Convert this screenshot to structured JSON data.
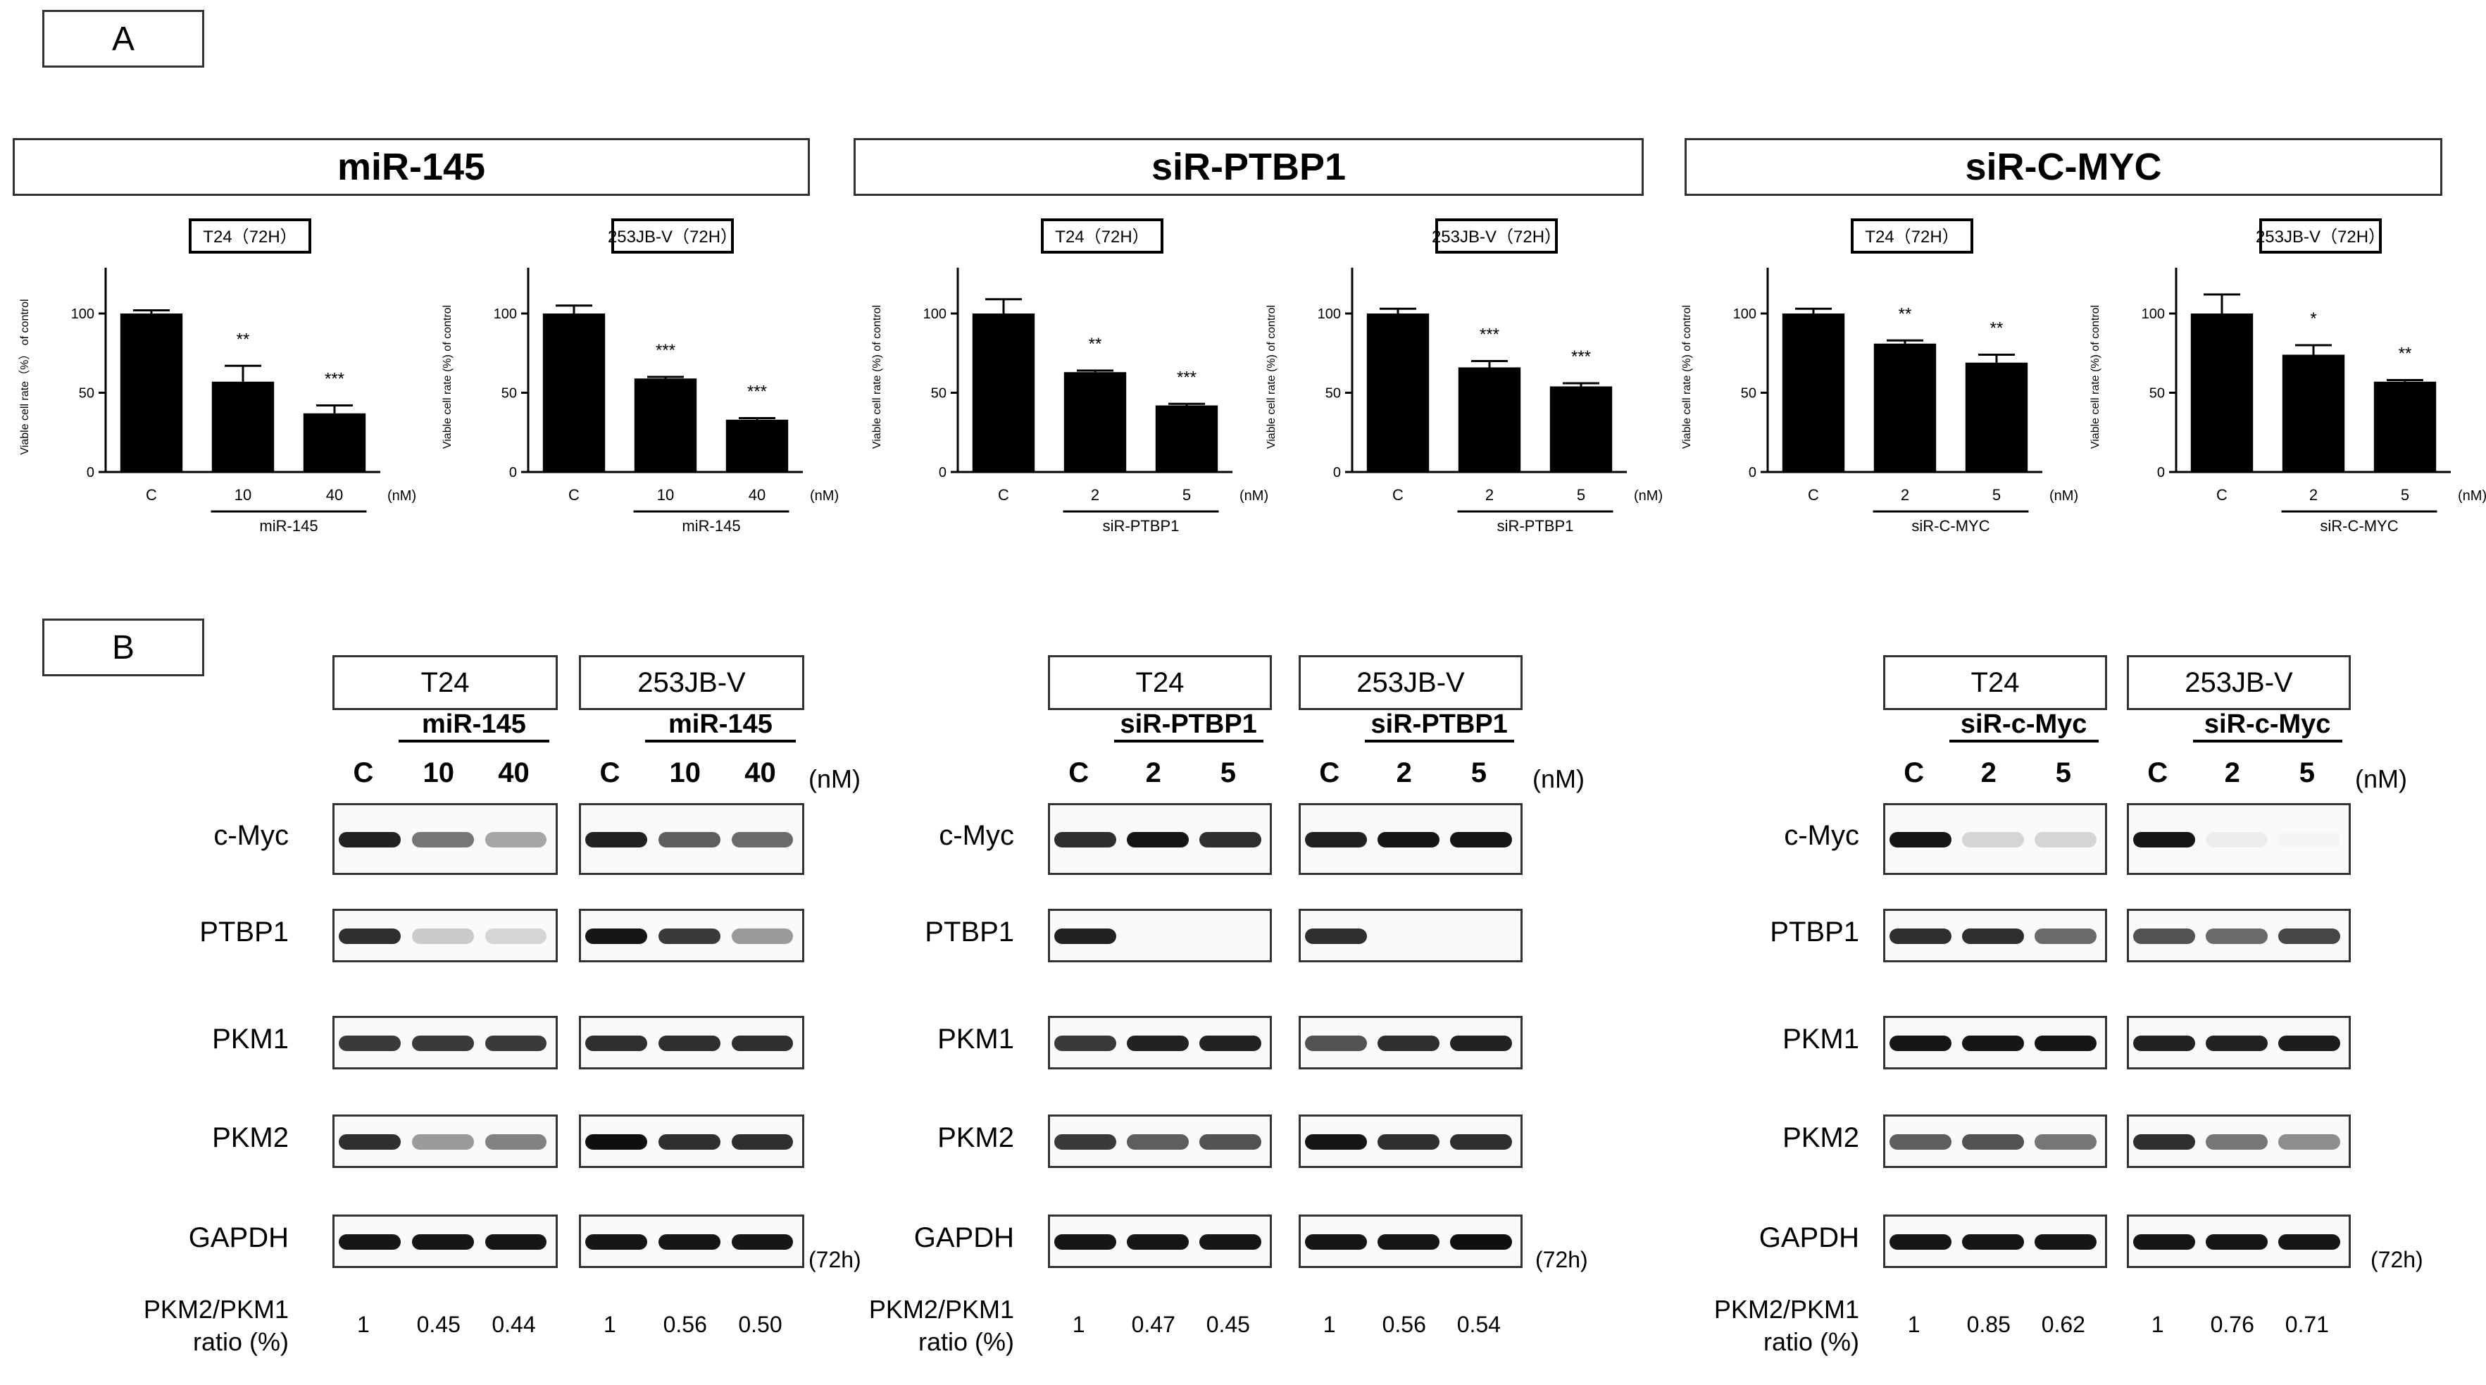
{
  "panels": {
    "a": "A",
    "b": "B"
  },
  "groups": [
    {
      "title": "miR-145",
      "charts": [
        {
          "cell": "T24（72H）",
          "ylabel": "Viable cell rate（%） of control"
        },
        {
          "cell": "253JB-V（72H）",
          "ylabel": "Viable cell rate (%) of control"
        }
      ],
      "blot": {
        "cells": [
          "T24",
          "253JB-V"
        ],
        "treatment": "miR-145",
        "lanes": [
          "C",
          "10",
          "40"
        ],
        "unit": "(nM)",
        "ratios": [
          [
            "1",
            "0.45",
            "0.44"
          ],
          [
            "1",
            "0.56",
            "0.50"
          ]
        ]
      }
    },
    {
      "title": "siR-PTBP1",
      "charts": [
        {
          "cell": "T24（72H）",
          "ylabel": "Viable cell rate (%) of control"
        },
        {
          "cell": "253JB-V（72H）",
          "ylabel": "Viable cell rate (%) of control"
        }
      ],
      "blot": {
        "cells": [
          "T24",
          "253JB-V"
        ],
        "treatment": "siR-PTBP1",
        "lanes": [
          "C",
          "2",
          "5"
        ],
        "unit": "(nM)",
        "ratios": [
          [
            "1",
            "0.47",
            "0.45"
          ],
          [
            "1",
            "0.56",
            "0.54"
          ]
        ]
      }
    },
    {
      "title": "siR-C-MYC",
      "charts": [
        {
          "cell": "T24（72H）",
          "ylabel": "Viable cell rate (%) of control"
        },
        {
          "cell": "253JB-V（72H）",
          "ylabel": "Viable cell rate (%) of control"
        }
      ],
      "blot": {
        "cells": [
          "T24",
          "253JB-V"
        ],
        "treatment": "siR-c-Myc",
        "lanes": [
          "C",
          "2",
          "5"
        ],
        "unit": "(nM)",
        "ratios": [
          [
            "1",
            "0.85",
            "0.62"
          ],
          [
            "1",
            "0.76",
            "0.71"
          ]
        ]
      }
    }
  ],
  "proteins": [
    "c-Myc",
    "PTBP1",
    "PKM1",
    "PKM2",
    "GAPDH"
  ],
  "duration": "(72h)",
  "ratio_label_line1": "PKM2/PKM1",
  "ratio_label_line2": "ratio (%)",
  "chart_data": [
    {
      "type": "bar",
      "title": "T24（72H）",
      "ylabel": "Viable cell rate（%） of control",
      "categories": [
        "C",
        "10",
        "40"
      ],
      "group_label": "miR-145",
      "unit": "(nM)",
      "values": [
        100,
        57,
        37
      ],
      "errors": [
        2,
        10,
        5
      ],
      "significance": [
        "",
        "**",
        "***"
      ],
      "ylim": [
        0,
        120
      ],
      "yticks": [
        0,
        50,
        100
      ]
    },
    {
      "type": "bar",
      "title": "253JB-V（72H）",
      "ylabel": "Viable cell rate (%) of control",
      "categories": [
        "C",
        "10",
        "40"
      ],
      "group_label": "miR-145",
      "unit": "(nM)",
      "values": [
        100,
        59,
        33
      ],
      "errors": [
        5,
        1,
        1
      ],
      "significance": [
        "",
        "***",
        "***"
      ],
      "ylim": [
        0,
        120
      ],
      "yticks": [
        0,
        50,
        100
      ]
    },
    {
      "type": "bar",
      "title": "T24（72H）",
      "ylabel": "Viable cell rate (%) of control",
      "categories": [
        "C",
        "2",
        "5"
      ],
      "group_label": "siR-PTBP1",
      "unit": "(nM)",
      "values": [
        100,
        63,
        42
      ],
      "errors": [
        9,
        1,
        1
      ],
      "significance": [
        "",
        "**",
        "***"
      ],
      "ylim": [
        0,
        120
      ],
      "yticks": [
        0,
        50,
        100
      ]
    },
    {
      "type": "bar",
      "title": "253JB-V（72H）",
      "ylabel": "Viable cell rate (%) of control",
      "categories": [
        "C",
        "2",
        "5"
      ],
      "group_label": "siR-PTBP1",
      "unit": "(nM)",
      "values": [
        100,
        66,
        54
      ],
      "errors": [
        3,
        4,
        2
      ],
      "significance": [
        "",
        "***",
        "***"
      ],
      "ylim": [
        0,
        120
      ],
      "yticks": [
        0,
        50,
        100
      ]
    },
    {
      "type": "bar",
      "title": "T24（72H）",
      "ylabel": "Viable cell rate (%) of control",
      "categories": [
        "C",
        "2",
        "5"
      ],
      "group_label": "siR-C-MYC",
      "unit": "(nM)",
      "values": [
        100,
        81,
        69
      ],
      "errors": [
        3,
        2,
        5
      ],
      "significance": [
        "",
        "**",
        "**"
      ],
      "ylim": [
        0,
        120
      ],
      "yticks": [
        0,
        50,
        100
      ]
    },
    {
      "type": "bar",
      "title": "253JB-V（72H）",
      "ylabel": "Viable cell rate (%) of control",
      "categories": [
        "C",
        "2",
        "5"
      ],
      "group_label": "siR-C-MYC",
      "unit": "(nM)",
      "values": [
        100,
        74,
        57
      ],
      "errors": [
        12,
        6,
        1
      ],
      "significance": [
        "",
        "*",
        "**"
      ],
      "ylim": [
        0,
        120
      ],
      "yticks": [
        0,
        50,
        100
      ]
    }
  ]
}
